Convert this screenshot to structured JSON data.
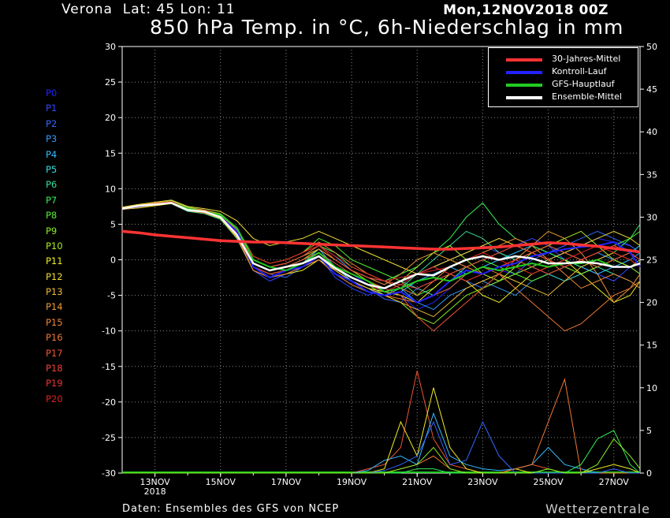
{
  "header": {
    "place": "Verona  Lat: 45 Lon: 11",
    "date": "Mon,12NOV2018 00Z",
    "title": "850 hPa Temp. in °C, 6h-Niederschlag in mm"
  },
  "footer": {
    "source": "Daten: Ensembles des GFS von NCEP",
    "brand": "Wetterzentrale"
  },
  "members": [
    {
      "label": "P0",
      "color": "#2222ff"
    },
    {
      "label": "P1",
      "color": "#3344ff"
    },
    {
      "label": "P2",
      "color": "#3366ff"
    },
    {
      "label": "P3",
      "color": "#3399ff"
    },
    {
      "label": "P4",
      "color": "#33bbff"
    },
    {
      "label": "P5",
      "color": "#33dddd"
    },
    {
      "label": "P6",
      "color": "#33dd99"
    },
    {
      "label": "P7",
      "color": "#33ee55"
    },
    {
      "label": "P8",
      "color": "#55ee33"
    },
    {
      "label": "P9",
      "color": "#88ee22"
    },
    {
      "label": "P10",
      "color": "#aaee22"
    },
    {
      "label": "P11",
      "color": "#eeee22"
    },
    {
      "label": "P12",
      "color": "#eedd33"
    },
    {
      "label": "P13",
      "color": "#eebb33"
    },
    {
      "label": "P14",
      "color": "#ee9933"
    },
    {
      "label": "P15",
      "color": "#ee8833"
    },
    {
      "label": "P16",
      "color": "#ee7733"
    },
    {
      "label": "P17",
      "color": "#ee5533"
    },
    {
      "label": "P18",
      "color": "#ee4433"
    },
    {
      "label": "P19",
      "color": "#ee3333"
    },
    {
      "label": "P20",
      "color": "#dd2222"
    }
  ],
  "legend": [
    {
      "label": "30-Jahres-Mittel",
      "color": "#ff3333"
    },
    {
      "label": "Kontroll-Lauf",
      "color": "#2222ff"
    },
    {
      "label": "GFS-Hauptlauf",
      "color": "#22cc22"
    },
    {
      "label": "Ensemble-Mittel",
      "color": "#ffffff"
    }
  ],
  "chart_data": {
    "type": "line",
    "x_ticks": [
      "13NOV",
      "15NOV",
      "17NOV",
      "19NOV",
      "21NOV",
      "23NOV",
      "25NOV",
      "27NOV"
    ],
    "x_year_label": "2018",
    "xlim": [
      12.0,
      27.8
    ],
    "ylim_left": [
      -30,
      30
    ],
    "y_ticks_left": [
      -30,
      -25,
      -20,
      -15,
      -10,
      -5,
      0,
      5,
      10,
      15,
      20,
      25,
      30
    ],
    "ylim_right": [
      0,
      50
    ],
    "y_ticks_right": [
      0,
      5,
      10,
      15,
      20,
      25,
      30,
      35,
      40,
      45,
      50
    ],
    "grid": true,
    "legend_position": "top-right",
    "x": [
      12.0,
      12.5,
      13.0,
      13.5,
      14.0,
      14.5,
      15.0,
      15.5,
      16.0,
      16.5,
      17.0,
      17.5,
      18.0,
      18.5,
      19.0,
      19.5,
      20.0,
      20.5,
      21.0,
      21.5,
      22.0,
      22.5,
      23.0,
      23.5,
      24.0,
      24.5,
      25.0,
      25.5,
      26.0,
      26.5,
      27.0,
      27.5,
      27.8
    ],
    "climate_mean": [
      4,
      3.8,
      3.5,
      3.3,
      3.1,
      2.9,
      2.7,
      2.6,
      2.5,
      2.5,
      2.4,
      2.3,
      2.2,
      2.1,
      2.0,
      1.9,
      1.8,
      1.7,
      1.6,
      1.5,
      1.5,
      1.6,
      1.7,
      1.8,
      2.0,
      2.2,
      2.4,
      2.3,
      2.1,
      1.9,
      1.6,
      1.3,
      1.1
    ],
    "control_run": [
      7.2,
      7.5,
      7.8,
      8,
      7,
      6.8,
      6,
      4,
      -1,
      -2.5,
      -1.5,
      -1,
      0.5,
      -2,
      -3,
      -4.5,
      -5,
      -4.5,
      -6,
      -5,
      -3,
      -1.5,
      -2,
      -1,
      -0.5,
      0.5,
      1,
      1.5,
      1.8,
      2,
      2.5,
      1,
      -1
    ],
    "main_run": [
      7.2,
      7.6,
      7.8,
      8,
      7.2,
      6.8,
      6.3,
      4.5,
      0,
      -1,
      -1.5,
      -0.5,
      1,
      -1,
      -2,
      -3,
      -4.5,
      -4,
      -3,
      -2.5,
      -3,
      -2,
      -1,
      -1.5,
      -1,
      -0.5,
      -1,
      -0.5,
      -0.5,
      0,
      -1,
      -1,
      -0.5
    ],
    "ensemble_mean": [
      7.2,
      7.6,
      7.8,
      8,
      7,
      6.8,
      6,
      3.5,
      -0.5,
      -1.5,
      -1,
      -0.5,
      0.5,
      -1.2,
      -2.5,
      -3.5,
      -4,
      -3,
      -2,
      -2.2,
      -1,
      0,
      0.5,
      0,
      0.5,
      0.2,
      -0.5,
      -0.5,
      -0.3,
      -0.5,
      -1,
      -1,
      -0.5
    ],
    "members": [
      [
        7.2,
        7.7,
        7.9,
        8.2,
        7.2,
        6.9,
        6.2,
        3.8,
        -0.5,
        -1.5,
        -1,
        0,
        1,
        -0.5,
        -2,
        -3.5,
        -4.5,
        -5,
        -7,
        -6,
        -4,
        -2,
        -1,
        -1.5,
        -2,
        -1,
        0,
        1,
        2,
        3,
        2.5,
        2,
        1
      ],
      [
        7.1,
        7.5,
        7.8,
        8.1,
        7,
        6.7,
        5.8,
        3,
        -1.5,
        -3,
        -2,
        -1,
        0.5,
        -2.5,
        -4,
        -5,
        -4,
        -3,
        -2,
        -1,
        0,
        1,
        2,
        1,
        2,
        3,
        2,
        0,
        -1,
        -2,
        -3,
        -1,
        0
      ],
      [
        7.2,
        7.4,
        7.7,
        8,
        6.9,
        6.6,
        6,
        3.5,
        -1,
        -2,
        -2.5,
        -1,
        0,
        -1,
        -3,
        -4,
        -5.5,
        -6,
        -4,
        -3,
        -2,
        -3,
        -4,
        -3,
        -2,
        0,
        1,
        2,
        3,
        4,
        3,
        2,
        1
      ],
      [
        7.3,
        7.6,
        7.8,
        8.3,
        7.3,
        7,
        6.4,
        4,
        0,
        -1,
        -0.5,
        0.5,
        2,
        0.5,
        -1.5,
        -2.5,
        -3,
        -4,
        -6,
        -7,
        -5,
        -4,
        -3,
        -4,
        -5,
        -3,
        -2,
        -1,
        0,
        1,
        0,
        -1,
        -2
      ],
      [
        7.2,
        7.5,
        7.9,
        8,
        7.1,
        6.8,
        6.1,
        3.2,
        -1,
        -2,
        -1.5,
        -0.5,
        1.5,
        -1,
        -3,
        -4,
        -5,
        -4.5,
        -3,
        -2,
        -1,
        -2,
        -1,
        0,
        1,
        2,
        1,
        0,
        -1,
        -2,
        -1,
        0,
        1
      ],
      [
        7.2,
        7.6,
        7.8,
        8.1,
        7,
        6.9,
        6,
        3.6,
        -0.5,
        -1.5,
        -1,
        0,
        1,
        -1,
        -2.5,
        -3.5,
        -4,
        -3,
        -4,
        -5,
        -3,
        -1,
        0,
        1,
        0,
        -1,
        -2,
        -3,
        -2,
        -1,
        0,
        1,
        2
      ],
      [
        7.1,
        7.4,
        7.7,
        7.9,
        6.8,
        6.5,
        5.7,
        3,
        -1.5,
        -2.5,
        -2,
        -1,
        0,
        -2,
        -3.5,
        -4.5,
        -5,
        -4,
        -2,
        0,
        2,
        4,
        3,
        1,
        0,
        1,
        2,
        1,
        0,
        -1,
        -2,
        -3,
        -4
      ],
      [
        7.2,
        7.6,
        7.9,
        8.2,
        7.2,
        6.8,
        6.2,
        4,
        0,
        -1,
        -0.5,
        0.5,
        2,
        1,
        -1,
        -2,
        -3,
        -2,
        -1,
        1,
        3,
        6,
        8,
        5,
        3,
        2,
        1,
        0,
        -1,
        0,
        1,
        3,
        5
      ],
      [
        7.3,
        7.7,
        8,
        8.3,
        7.4,
        7,
        6.5,
        4.5,
        0.5,
        -0.5,
        0,
        1,
        3,
        2,
        0,
        -1,
        -2,
        -3,
        -5,
        -4,
        -2,
        -1,
        0,
        -1,
        -2,
        -3,
        -2,
        -1,
        0,
        1,
        2,
        3,
        4
      ],
      [
        7.2,
        7.5,
        7.8,
        8,
        7,
        6.7,
        6,
        3.4,
        -1,
        -2,
        -1.5,
        -0.5,
        1,
        -1,
        -2.5,
        -3.5,
        -5,
        -6,
        -8,
        -9,
        -7,
        -5,
        -4,
        -3,
        -2,
        -1,
        0,
        -1,
        -2,
        -1,
        0,
        -1,
        -2
      ],
      [
        7.2,
        7.6,
        7.9,
        8.1,
        7.1,
        6.8,
        6.1,
        3.7,
        -0.5,
        -1.5,
        -1,
        0,
        1.5,
        0,
        -1.5,
        -3,
        -4,
        -3,
        -1,
        1,
        2,
        0,
        -2,
        -3,
        -1,
        1,
        2,
        3,
        4,
        2,
        0,
        -1,
        0
      ],
      [
        7.1,
        7.3,
        7.6,
        7.9,
        6.9,
        6.6,
        5.8,
        3.1,
        -1.5,
        -2.5,
        -2,
        -1.5,
        0,
        -1.5,
        -3,
        -4,
        -4.5,
        -5,
        -6,
        -4,
        -2,
        -3,
        -5,
        -6,
        -4,
        -2,
        -1,
        0,
        -2,
        -4,
        -6,
        -5,
        -3
      ],
      [
        7.4,
        7.8,
        8.1,
        8.4,
        7.5,
        7.2,
        6.8,
        5.5,
        3,
        2,
        2.5,
        3,
        4,
        3,
        2,
        1,
        0,
        -1,
        -2,
        -1,
        0,
        1,
        2,
        3,
        2,
        1,
        0,
        1,
        2,
        3,
        4,
        3,
        2
      ],
      [
        7.2,
        7.5,
        7.8,
        8,
        7,
        6.8,
        6,
        3.3,
        -1,
        -2,
        -1.5,
        -1,
        0.5,
        -1.5,
        -3,
        -4,
        -5,
        -6,
        -7,
        -8,
        -6,
        -4,
        -3,
        -2,
        -3,
        -4,
        -5,
        -3,
        -1,
        0,
        1,
        0,
        -1
      ],
      [
        7.2,
        7.6,
        7.8,
        8.1,
        7.1,
        6.9,
        6.2,
        3.9,
        0,
        -1,
        -0.5,
        0.5,
        1.5,
        0,
        -1.5,
        -2.5,
        -3.5,
        -2,
        0,
        1,
        0,
        -1,
        -2,
        -1,
        0,
        2,
        4,
        3,
        1,
        -2,
        -6,
        -4,
        -2
      ],
      [
        7.3,
        7.7,
        8,
        8.2,
        7.3,
        7,
        6.4,
        4.2,
        0.5,
        -0.5,
        0,
        1,
        2.5,
        1,
        -0.5,
        -2,
        -3,
        -4,
        -5,
        -3,
        -1,
        0,
        1,
        2,
        3,
        2,
        0,
        -2,
        -4,
        -3,
        -2,
        -3,
        -4
      ],
      [
        7.1,
        7.4,
        7.7,
        8,
        6.9,
        6.6,
        5.9,
        3.2,
        -1.5,
        -2.5,
        -2,
        -1,
        0,
        -2,
        -3.5,
        -4.5,
        -5,
        -5.5,
        -6,
        -5,
        -4,
        -2,
        -1,
        -2,
        -4,
        -6,
        -8,
        -10,
        -9,
        -7,
        -5,
        -4,
        -3
      ],
      [
        7.2,
        7.5,
        7.8,
        8.1,
        7,
        6.8,
        6.1,
        3.5,
        -0.5,
        -1.5,
        -1,
        0,
        1,
        -0.5,
        -2,
        -3,
        -4,
        -5,
        -8,
        -10,
        -8,
        -6,
        -4,
        -2,
        0,
        1,
        2,
        1,
        0,
        -1,
        0,
        1,
        0
      ],
      [
        7.2,
        7.6,
        7.9,
        8.2,
        7.2,
        6.9,
        6.3,
        3.8,
        0,
        -1,
        -0.5,
        0.5,
        2,
        0,
        -1.5,
        -2.5,
        -3,
        -3.5,
        -4,
        -3,
        -2,
        -1,
        0,
        1,
        2,
        1,
        0,
        -1,
        0,
        1,
        2,
        1,
        0
      ],
      [
        7.2,
        7.5,
        7.8,
        8,
        7,
        6.7,
        6,
        3.4,
        -1,
        -2,
        -1.5,
        -0.5,
        1,
        -1,
        -2.5,
        -3.5,
        -4.5,
        -3.5,
        -2,
        -1,
        -2,
        -3,
        -2,
        -1,
        0,
        -1,
        -2,
        -1,
        0,
        1,
        2,
        1,
        -1
      ],
      [
        7.3,
        7.6,
        7.9,
        8.2,
        7.2,
        6.9,
        6.3,
        4,
        0.5,
        -0.5,
        0,
        1,
        2,
        0.5,
        -1,
        -2,
        -3,
        -2.5,
        -2,
        -1.5,
        -1,
        0,
        1,
        0,
        -1,
        -2,
        -1,
        0,
        1,
        2,
        1,
        0,
        -1
      ]
    ],
    "precipitation_note": "6h precipitation lines on right axis",
    "precipitation": [
      {
        "member": 17,
        "values": [
          0,
          0,
          0,
          0,
          0,
          0,
          0,
          0,
          0,
          0,
          0,
          0,
          0,
          0,
          0,
          0.5,
          1,
          3,
          12,
          4,
          1,
          0.5,
          0,
          0,
          0.5,
          1,
          0.5,
          0,
          0,
          0,
          0,
          0,
          0
        ]
      },
      {
        "member": 4,
        "values": [
          0,
          0,
          0,
          0,
          0,
          0,
          0,
          0,
          0,
          0,
          0,
          0,
          0,
          0,
          0,
          0.3,
          1.5,
          2,
          1,
          7,
          2,
          1,
          0.5,
          0.3,
          0.5,
          1,
          3,
          1,
          0.5,
          0,
          0,
          0,
          0
        ]
      },
      {
        "member": 11,
        "values": [
          0,
          0,
          0,
          0,
          0,
          0,
          0,
          0,
          0,
          0,
          0,
          0,
          0,
          0,
          0,
          0,
          0.5,
          6,
          2,
          10,
          3,
          0.5,
          0,
          0,
          0.5,
          0,
          0,
          0,
          0,
          0.5,
          1,
          0.5,
          0
        ]
      },
      {
        "member": 16,
        "values": [
          0,
          0,
          0,
          0,
          0,
          0,
          0,
          0,
          0,
          0,
          0,
          0,
          0,
          0,
          0,
          0,
          0,
          0.5,
          1,
          2,
          0.5,
          0,
          0,
          0,
          0.5,
          1,
          6,
          11,
          0,
          0,
          0,
          0,
          0
        ]
      },
      {
        "member": 7,
        "values": [
          0,
          0,
          0,
          0,
          0,
          0,
          0,
          0,
          0,
          0,
          0,
          0,
          0,
          0,
          0,
          0,
          0,
          0,
          0.5,
          0.5,
          0,
          0,
          0,
          0,
          0,
          0,
          0.5,
          0,
          1,
          4,
          5,
          1,
          0
        ]
      },
      {
        "member": 2,
        "values": [
          0,
          0,
          0,
          0,
          0,
          0,
          0,
          0,
          0,
          0,
          0,
          0,
          0,
          0,
          0,
          0,
          0.3,
          1,
          2,
          6,
          1,
          1.5,
          6,
          2,
          0,
          0,
          0,
          0,
          0,
          0,
          0.5,
          0,
          0
        ]
      },
      {
        "member": 9,
        "values": [
          0,
          0,
          0,
          0,
          0,
          0,
          0,
          0,
          0,
          0,
          0,
          0,
          0,
          0,
          0,
          0,
          0,
          0.5,
          1,
          3,
          0.5,
          0,
          0,
          0,
          0,
          0,
          0.5,
          0,
          0,
          1,
          4,
          2,
          0.5
        ]
      }
    ]
  }
}
